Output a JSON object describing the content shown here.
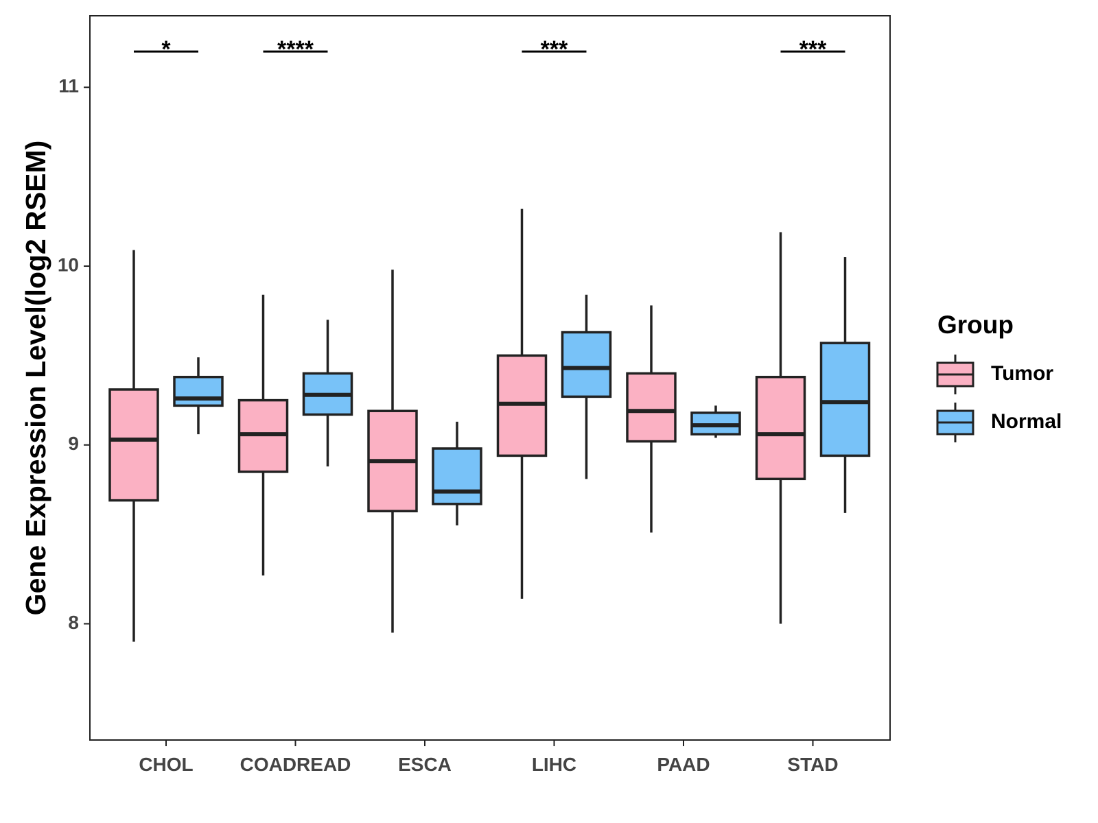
{
  "chart_data": {
    "type": "boxplot",
    "title": "",
    "xlabel": "",
    "ylabel": "Gene Expression Level(log2 RSEM)",
    "ylim": [
      7.35,
      11.4
    ],
    "yticks": [
      8,
      9,
      10,
      11
    ],
    "ytick_labels": [
      "8",
      "9",
      "10",
      "11"
    ],
    "grid": false,
    "legend_position": "right",
    "legend_title": "Group",
    "categories": [
      "CHOL",
      "COADREAD",
      "ESCA",
      "LIHC",
      "PAAD",
      "STAD"
    ],
    "series": [
      {
        "name": "Tumor",
        "color": "#FBB1C3",
        "boxes": [
          {
            "whisker_low": 7.9,
            "q1": 8.69,
            "median": 9.03,
            "q3": 9.31,
            "whisker_high": 10.09
          },
          {
            "whisker_low": 8.27,
            "q1": 8.85,
            "median": 9.06,
            "q3": 9.25,
            "whisker_high": 9.84
          },
          {
            "whisker_low": 7.95,
            "q1": 8.63,
            "median": 8.91,
            "q3": 9.19,
            "whisker_high": 9.98
          },
          {
            "whisker_low": 8.14,
            "q1": 8.94,
            "median": 9.23,
            "q3": 9.5,
            "whisker_high": 10.32
          },
          {
            "whisker_low": 8.51,
            "q1": 9.02,
            "median": 9.19,
            "q3": 9.4,
            "whisker_high": 9.78
          },
          {
            "whisker_low": 8.0,
            "q1": 8.81,
            "median": 9.06,
            "q3": 9.38,
            "whisker_high": 10.19
          }
        ]
      },
      {
        "name": "Normal",
        "color": "#78C2F8",
        "boxes": [
          {
            "whisker_low": 9.06,
            "q1": 9.22,
            "median": 9.26,
            "q3": 9.38,
            "whisker_high": 9.49
          },
          {
            "whisker_low": 8.88,
            "q1": 9.17,
            "median": 9.28,
            "q3": 9.4,
            "whisker_high": 9.7
          },
          {
            "whisker_low": 8.55,
            "q1": 8.67,
            "median": 8.74,
            "q3": 8.98,
            "whisker_high": 9.13
          },
          {
            "whisker_low": 8.81,
            "q1": 9.27,
            "median": 9.43,
            "q3": 9.63,
            "whisker_high": 9.84
          },
          {
            "whisker_low": 9.04,
            "q1": 9.06,
            "median": 9.11,
            "q3": 9.18,
            "whisker_high": 9.22
          },
          {
            "whisker_low": 8.62,
            "q1": 8.94,
            "median": 9.24,
            "q3": 9.57,
            "whisker_high": 10.05
          }
        ]
      }
    ],
    "significance": [
      {
        "category": "CHOL",
        "label": "*"
      },
      {
        "category": "COADREAD",
        "label": "****"
      },
      {
        "category": "LIHC",
        "label": "***"
      },
      {
        "category": "STAD",
        "label": "***"
      }
    ],
    "significance_y": 11.2
  }
}
